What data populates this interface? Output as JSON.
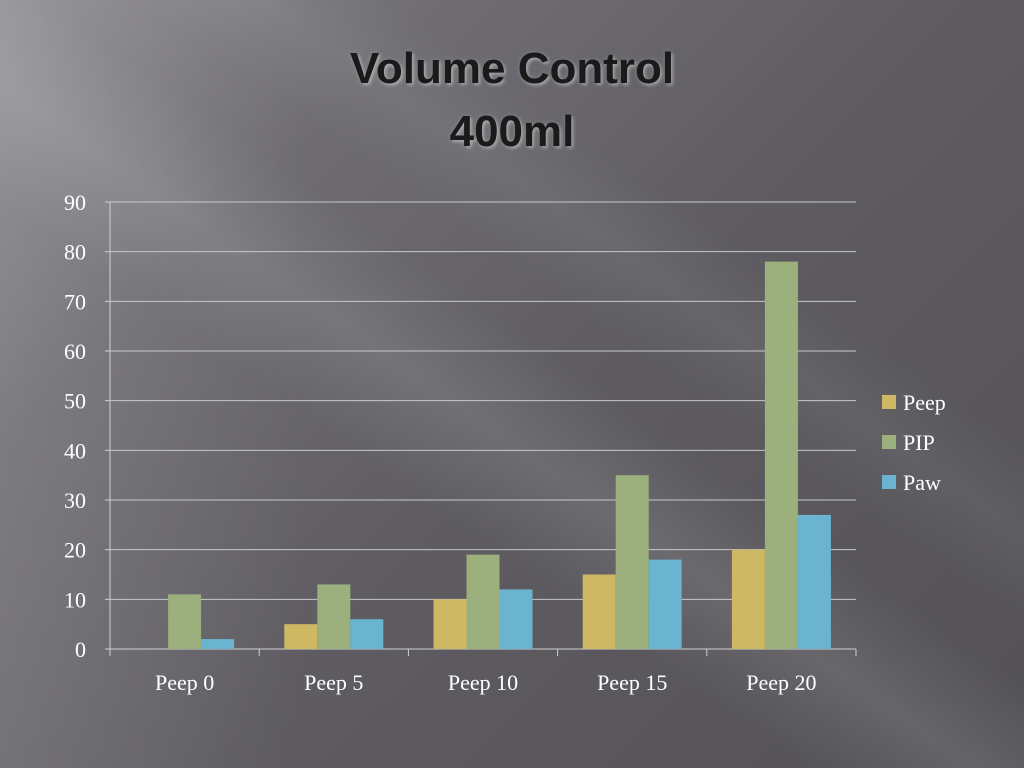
{
  "title": {
    "line1": "Volume Control",
    "line2": "400ml"
  },
  "chart_data": {
    "type": "bar",
    "categories": [
      "Peep 0",
      "Peep 5",
      "Peep 10",
      "Peep 15",
      "Peep 20"
    ],
    "series": [
      {
        "name": "Peep",
        "color": "#cfb863",
        "values": [
          0,
          5,
          10,
          15,
          20
        ]
      },
      {
        "name": "PIP",
        "color": "#9bb07d",
        "values": [
          11,
          13,
          19,
          35,
          78
        ]
      },
      {
        "name": "Paw",
        "color": "#6bb4d0",
        "values": [
          2,
          6,
          12,
          18,
          27
        ]
      }
    ],
    "ylim": [
      0,
      90
    ],
    "yticks": [
      "0",
      "10",
      "20",
      "30",
      "40",
      "50",
      "60",
      "70",
      "80",
      "90"
    ],
    "grid": true,
    "legend_position": "right"
  }
}
